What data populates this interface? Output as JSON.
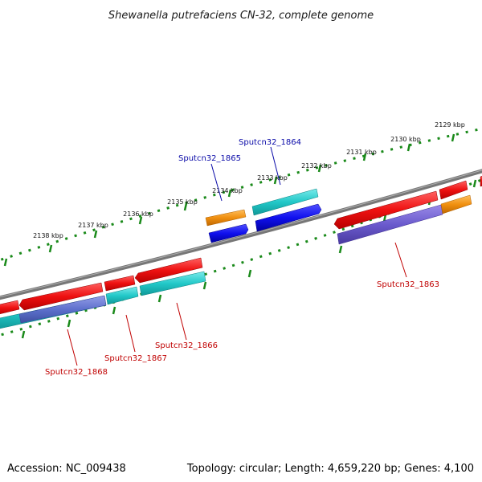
{
  "title": "Shewanella putrefaciens CN-32, complete genome",
  "footer": {
    "accession": "Accession: NC_009438",
    "summary": "Topology: circular; Length: 4,659,220 bp; Genes: 4,100"
  },
  "scale_labels": [
    "2129 kbp",
    "2130 kbp",
    "2131 kbp",
    "2132 kbp",
    "2133 kbp",
    "2134 kbp",
    "2135 kbp",
    "2136 kbp",
    "2137 kbp",
    "2138 kbp"
  ],
  "gene_labels": {
    "g1864": "Sputcn32_1864",
    "g1865": "Sputcn32_1865",
    "g1863": "Sputcn32_1863",
    "g1866": "Sputcn32_1866",
    "g1867": "Sputcn32_1867",
    "g1868": "Sputcn32_1868"
  },
  "colors": {
    "backbone": "#7a7a7a",
    "cds_forward": "#ee1111",
    "gene_cyan": "#22c8c8",
    "gene_orange": "#f09010",
    "gene_blue": "#1010ee",
    "gene_purple": "#6a5acd",
    "scale_dots": "#1a8a1a",
    "label_blue": "#0a0aa8",
    "label_red": "#c00000"
  }
}
